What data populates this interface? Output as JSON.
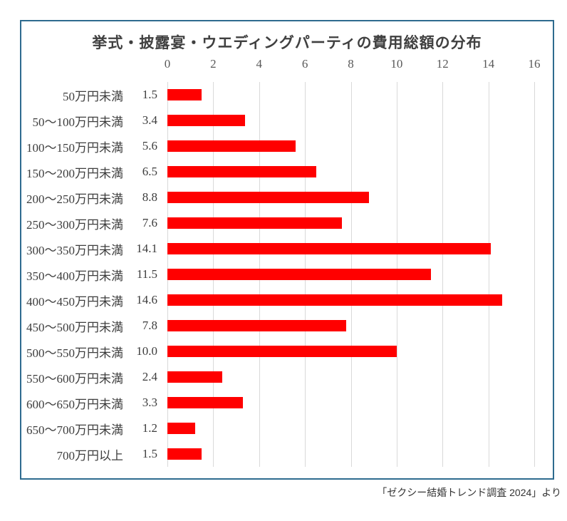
{
  "colors": {
    "bar": "#ff0000",
    "frame_border": "#2e6b8f",
    "gridline": "#d9d9d9",
    "axis_text": "#595959",
    "label_text": "#3d3d3d",
    "title_text": "#404040"
  },
  "chart_data": {
    "type": "bar",
    "orientation": "horizontal",
    "title": "挙式・披露宴・ウエディングパーティの費用総額の分布",
    "categories": [
      "50万円未満",
      "50～100万円未満",
      "100～150万円未満",
      "150～200万円未満",
      "200～250万円未満",
      "250～300万円未満",
      "300～350万円未満",
      "350～400万円未満",
      "400～450万円未満",
      "450～500万円未満",
      "500～550万円未満",
      "550～600万円未満",
      "600～650万円未満",
      "650～700万円未満",
      "700万円以上"
    ],
    "values": [
      1.5,
      3.4,
      5.6,
      6.5,
      8.8,
      7.6,
      14.1,
      11.5,
      14.6,
      7.8,
      10.0,
      2.4,
      3.3,
      1.2,
      1.5
    ],
    "value_labels": [
      "1.5",
      "3.4",
      "5.6",
      "6.5",
      "8.8",
      "7.6",
      "14.1",
      "11.5",
      "14.6",
      "7.8",
      "10.0",
      "2.4",
      "3.3",
      "1.2",
      "1.5"
    ],
    "xlim": [
      0,
      16
    ],
    "xticks": [
      0,
      2,
      4,
      6,
      8,
      10,
      12,
      14,
      16
    ],
    "grid": true,
    "legend": "none",
    "axis_position": "top",
    "source": "「ゼクシー結婚トレンド調査 2024」より"
  }
}
